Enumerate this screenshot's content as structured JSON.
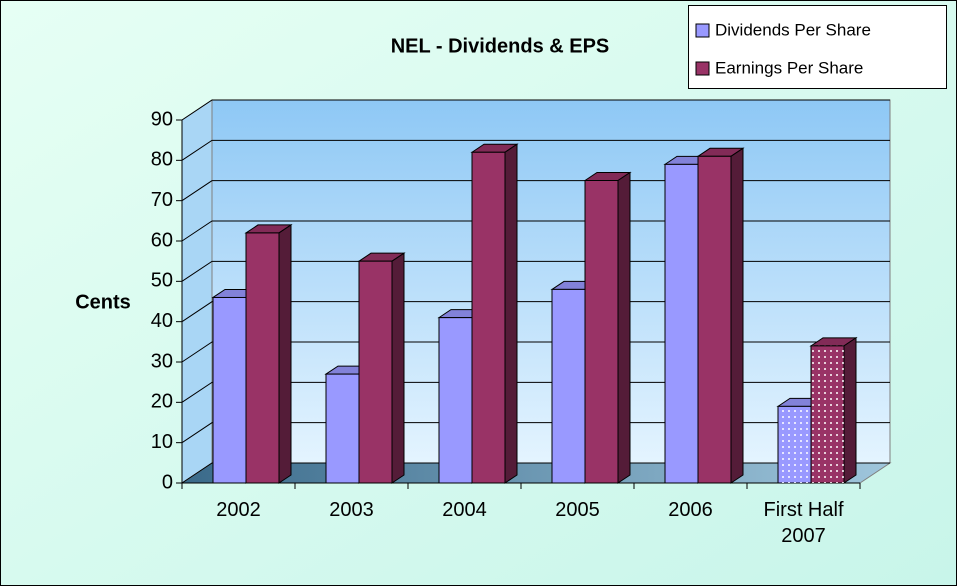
{
  "chart_data": {
    "type": "bar3d",
    "title": "NEL - Dividends & EPS",
    "y_label": "Cents",
    "categories": [
      "2002",
      "2003",
      "2004",
      "2005",
      "2006",
      "First Half 2007"
    ],
    "dotted": [
      false,
      false,
      false,
      false,
      false,
      true
    ],
    "series": [
      {
        "name": "Dividends Per Share",
        "color": "#9999ff",
        "values": [
          46,
          27,
          41,
          48,
          79,
          19
        ]
      },
      {
        "name": "Earnings Per Share",
        "color": "#993366",
        "values": [
          62,
          55,
          82,
          75,
          81,
          34
        ]
      }
    ],
    "ylim": [
      0,
      90
    ],
    "yticks": [
      0,
      10,
      20,
      30,
      40,
      50,
      60,
      70,
      80,
      90
    ],
    "grid": true,
    "legend": "top-right"
  }
}
